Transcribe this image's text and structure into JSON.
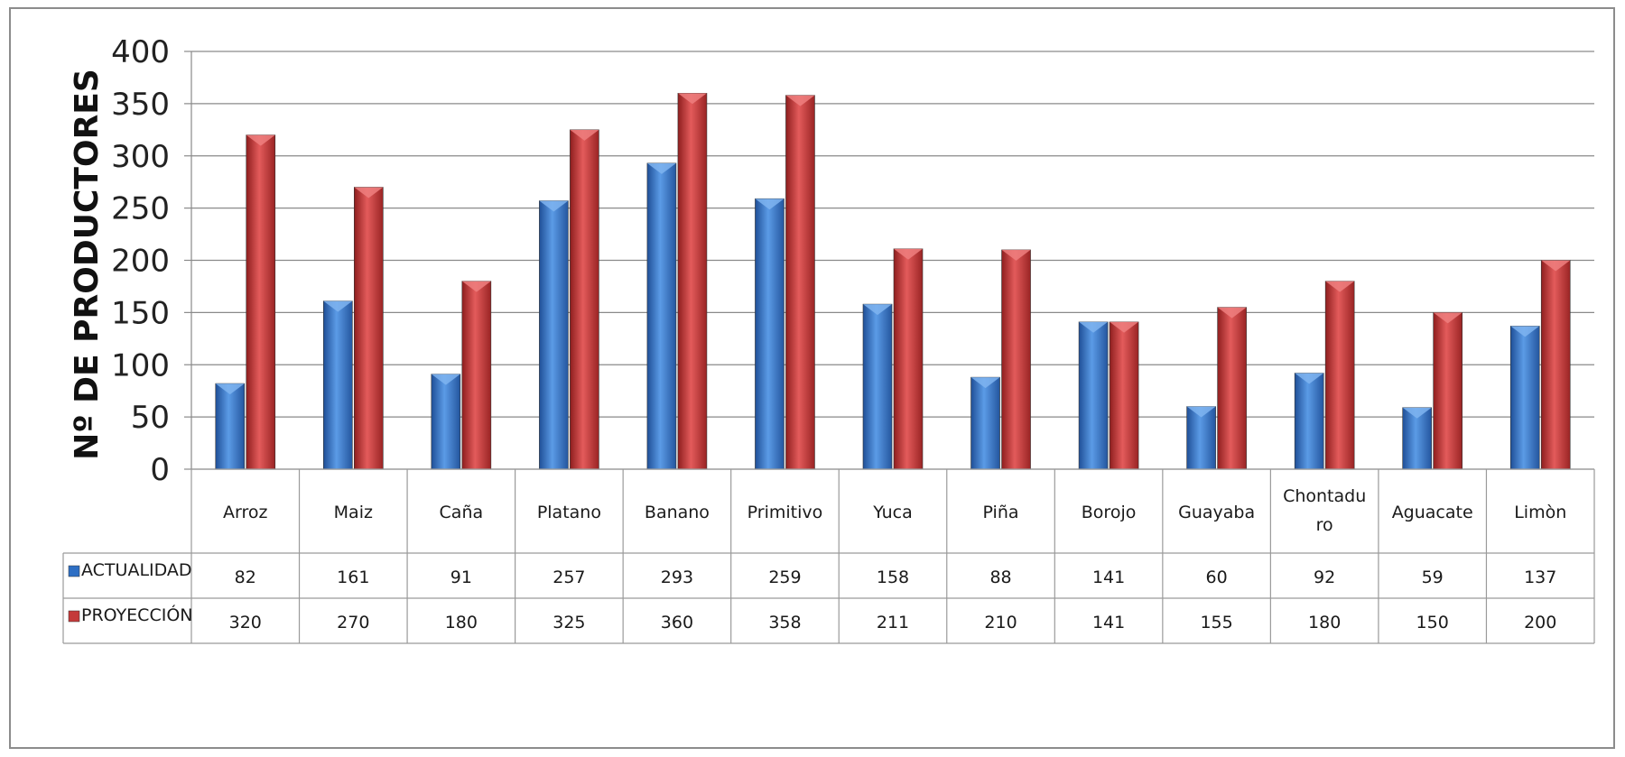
{
  "chart_data": {
    "type": "bar",
    "title": "",
    "xlabel": "",
    "ylabel": "Nº DE PRODUCTORES",
    "ylim": [
      0,
      400
    ],
    "yticks": [
      0,
      50,
      100,
      150,
      200,
      250,
      300,
      350,
      400
    ],
    "grid": true,
    "legend": "data-table-left",
    "categories": [
      [
        "Arroz"
      ],
      [
        "Maiz"
      ],
      [
        "Caña"
      ],
      [
        "Platano"
      ],
      [
        "Banano"
      ],
      [
        "Primitivo"
      ],
      [
        "Yuca"
      ],
      [
        "Piña"
      ],
      [
        "Borojo"
      ],
      [
        "Guayaba"
      ],
      [
        "Chontadu",
        "ro"
      ],
      [
        "Aguacate"
      ],
      [
        "Limòn"
      ]
    ],
    "series": [
      {
        "name": "ACTUALIDAD",
        "color": "#2e6fc4",
        "values": [
          82,
          161,
          91,
          257,
          293,
          259,
          158,
          88,
          141,
          60,
          92,
          59,
          137
        ]
      },
      {
        "name": "PROYECCIÓN",
        "color": "#c43a3a",
        "values": [
          320,
          270,
          180,
          325,
          360,
          358,
          211,
          210,
          141,
          155,
          180,
          150,
          200
        ]
      }
    ]
  }
}
